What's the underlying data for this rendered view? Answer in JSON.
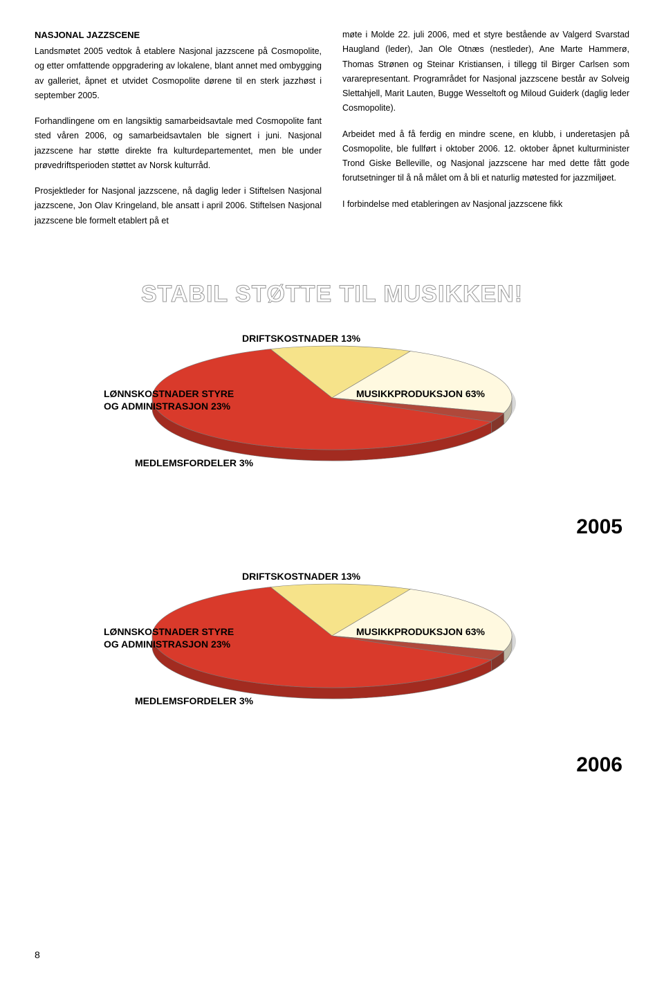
{
  "leftCol": {
    "heading": "NASJONAL JAZZSCENE",
    "p1": "Landsmøtet 2005 vedtok å etablere Nasjonal jazzscene på Cosmopolite, og etter omfattende oppgradering av lokalene, blant annet med ombygging av galleriet, åpnet et utvidet Cosmopolite dørene til en sterk jazzhøst i september 2005.",
    "p2": "Forhandlingene om en langsiktig samarbeidsavtale med Cosmopolite fant sted våren 2006, og samarbeidsavtalen ble signert i juni. Nasjonal jazzscene har støtte direkte fra kulturdepartementet, men ble under prøvedriftsperioden støttet av Norsk kulturråd.",
    "p3": "Prosjektleder for Nasjonal jazzscene, nå daglig leder i Stiftelsen Nasjonal jazzscene, Jon Olav Kringeland, ble ansatt i april 2006. Stiftelsen Nasjonal jazzscene ble formelt etablert på et"
  },
  "rightCol": {
    "p1": "møte i Molde 22. juli 2006, med et styre bestående av Valgerd Svarstad Haugland (leder), Jan Ole Otnæs (nestleder), Ane Marte Hammerø, Thomas Strønen og Steinar Kristiansen, i tillegg til Birger Carlsen som vararepresentant. Programrådet for Nasjonal jazzscene består av Solveig Slettahjell, Marit Lauten, Bugge Wesseltoft og Miloud Guiderk (daglig leder Cosmopolite).",
    "p2": "Arbeidet med å få ferdig en mindre scene, en klubb, i underetasjen på Cosmopolite, ble fullført i oktober 2006. 12. oktober åpnet kulturminister Trond Giske Belleville, og Nasjonal jazzscene har med dette fått gode forutsetninger til å nå målet om å bli et naturlig møtested for jazzmiljøet.",
    "p3": "I forbindelse med etableringen av Nasjonal jazzscene fikk"
  },
  "outlineTitle": "STABIL STØTTE TIL MUSIKKEN!",
  "chart": {
    "type": "pie-3d",
    "slices": [
      {
        "label": "MUSIKKPRODUKSJON 63%",
        "value": 63,
        "color": "#d93a2b"
      },
      {
        "label": "LØNNSKOSTNADER STYRE\nOG ADMINISTRASJON 23%",
        "value": 23,
        "color": "#fff9e0"
      },
      {
        "label": "DRIFTSKOSTNADER 13%",
        "value": 13,
        "color": "#f6e38a"
      },
      {
        "label": "MEDLEMSFORDELER 3%",
        "value": 3,
        "color": "#b0483a"
      }
    ],
    "years": [
      "2005",
      "2006"
    ],
    "shadow_color": "#d8d8d8",
    "stroke_color": "#7a7a7a"
  },
  "labels": {
    "drift": "DRIFTSKOSTNADER 13%",
    "lonn1": "LØNNSKOSTNADER STYRE",
    "lonn2": "OG ADMINISTRASJON 23%",
    "musikk": "MUSIKKPRODUKSJON 63%",
    "medlem": "MEDLEMSFORDELER 3%"
  },
  "pageNumber": "8"
}
